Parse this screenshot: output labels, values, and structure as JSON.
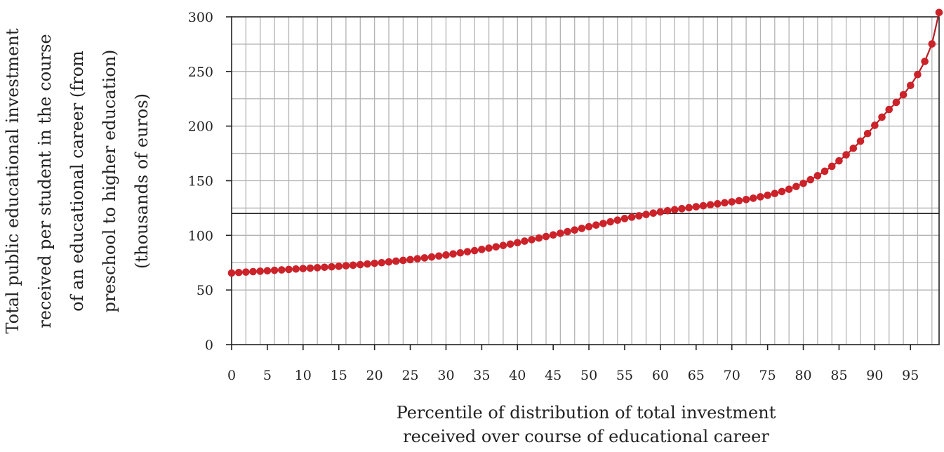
{
  "chart_data": {
    "type": "line",
    "markers": true,
    "xlabel": [
      "Percentile of distribution of total investment",
      "received over course of educational career"
    ],
    "ylabel": [
      "Total public educational investment",
      "received per student in the course",
      "of an educational career (from",
      "preschool to higher education)",
      "(thousands of euros)"
    ],
    "xlim": [
      0,
      99
    ],
    "ylim": [
      0,
      300
    ],
    "x_ticks": [
      "0",
      "5",
      "10",
      "15",
      "20",
      "25",
      "30",
      "35",
      "40",
      "45",
      "50",
      "55",
      "60",
      "65",
      "70",
      "75",
      "80",
      "85",
      "90",
      "95"
    ],
    "y_ticks": [
      "0",
      "50",
      "100",
      "150",
      "200",
      "250",
      "300"
    ],
    "grid": true,
    "reference_line": 120,
    "series": [
      {
        "x": [
          0,
          1,
          2,
          3,
          4,
          5,
          6,
          7,
          8,
          9,
          10,
          11,
          12,
          13,
          14,
          15,
          16,
          17,
          18,
          19,
          20,
          21,
          22,
          23,
          24,
          25,
          26,
          27,
          28,
          29,
          30,
          31,
          32,
          33,
          34,
          35,
          36,
          37,
          38,
          39,
          40,
          41,
          42,
          43,
          44,
          45,
          46,
          47,
          48,
          49,
          50,
          51,
          52,
          53,
          54,
          55,
          56,
          57,
          58,
          59,
          60,
          61,
          62,
          63,
          64,
          65,
          66,
          67,
          68,
          69,
          70,
          71,
          72,
          73,
          74,
          75,
          76,
          77,
          78,
          79,
          80,
          81,
          82,
          83,
          84,
          85,
          86,
          87,
          88,
          89,
          90,
          91,
          92,
          93,
          94,
          95,
          96,
          97,
          98,
          99
        ],
        "values": [
          65.5,
          66,
          66.4,
          66.8,
          67.2,
          67.6,
          68,
          68.4,
          68.8,
          69.2,
          69.6,
          70,
          70.4,
          70.8,
          71.2,
          71.7,
          72.2,
          72.7,
          73.2,
          73.8,
          74.4,
          75,
          75.7,
          76.4,
          77.1,
          77.8,
          78.6,
          79.4,
          80.2,
          81.1,
          82,
          83,
          84,
          85,
          86,
          87.1,
          88.3,
          89.5,
          90.7,
          92,
          93.3,
          94.7,
          96.1,
          97.5,
          98.9,
          100.4,
          101.9,
          103.4,
          104.9,
          106.4,
          107.9,
          109.4,
          110.9,
          112.4,
          113.9,
          115.4,
          116.7,
          117.9,
          119.1,
          120.3,
          121.5,
          122.5,
          123.5,
          124.4,
          125.3,
          126.2,
          127.1,
          128,
          128.9,
          129.8,
          130.7,
          131.7,
          132.8,
          134,
          135.3,
          136.7,
          138.3,
          140.1,
          142.2,
          144.7,
          147.6,
          150.9,
          154.6,
          158.7,
          163.2,
          168.2,
          173.7,
          179.7,
          186.2,
          193.2,
          200.7,
          208.2,
          215.2,
          221.7,
          228.7,
          237.2,
          247.2,
          259.2,
          275.2,
          304
        ]
      }
    ],
    "colors": {
      "line": "#b81f24",
      "marker": "#cc2229",
      "grid": "#b3b3b3",
      "axis": "#222222",
      "reference_line": "#222222"
    }
  }
}
